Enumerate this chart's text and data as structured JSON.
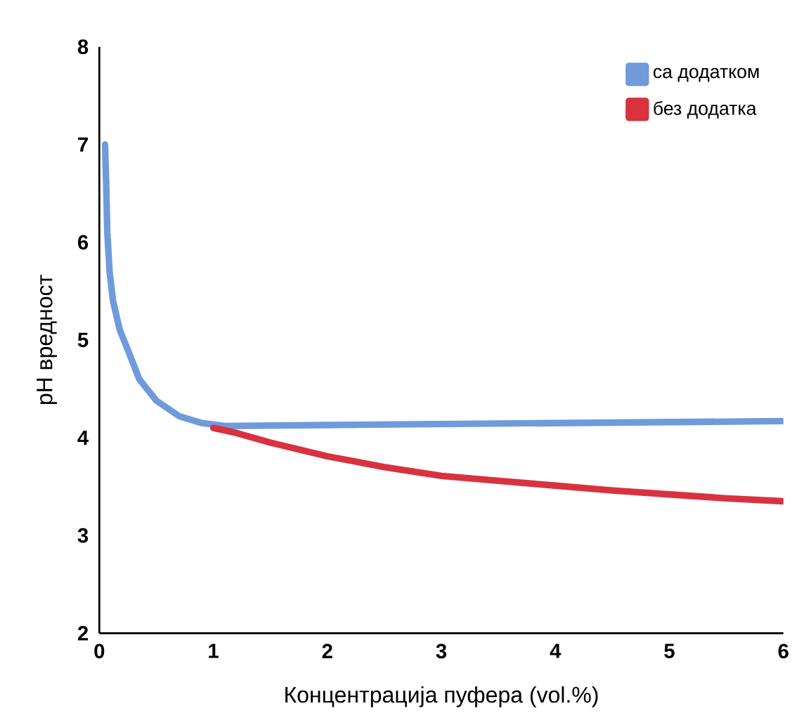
{
  "chart_data": {
    "type": "line",
    "xlabel": "Концентрација пуфера (vol.%)",
    "ylabel": "pH вредност",
    "xlim": [
      0,
      6
    ],
    "xticks": [
      0,
      1,
      2,
      3,
      4,
      5,
      6
    ],
    "ylim": [
      2,
      8
    ],
    "yticks": [
      2,
      3,
      4,
      5,
      6,
      7,
      8
    ],
    "legend": "top right",
    "grid": false,
    "line_style": "solid",
    "series": [
      {
        "name": "са додатком",
        "color": "#6f9bdc",
        "x": [
          0.05,
          0.06,
          0.07,
          0.09,
          0.12,
          0.18,
          0.25,
          0.35,
          0.5,
          0.7,
          0.9,
          1.1,
          2,
          3,
          4,
          5,
          6
        ],
        "values": [
          7.0,
          6.6,
          6.1,
          5.7,
          5.4,
          5.1,
          4.9,
          4.6,
          4.38,
          4.22,
          4.15,
          4.12,
          4.13,
          4.14,
          4.15,
          4.16,
          4.17
        ]
      },
      {
        "name": "без додатка",
        "color": "#d9323f",
        "x": [
          1,
          1.2,
          1.5,
          2,
          2.5,
          3,
          3.5,
          4,
          4.5,
          5,
          5.5,
          6
        ],
        "values": [
          4.1,
          4.05,
          3.95,
          3.81,
          3.7,
          3.61,
          3.56,
          3.51,
          3.46,
          3.42,
          3.38,
          3.35
        ]
      }
    ]
  }
}
